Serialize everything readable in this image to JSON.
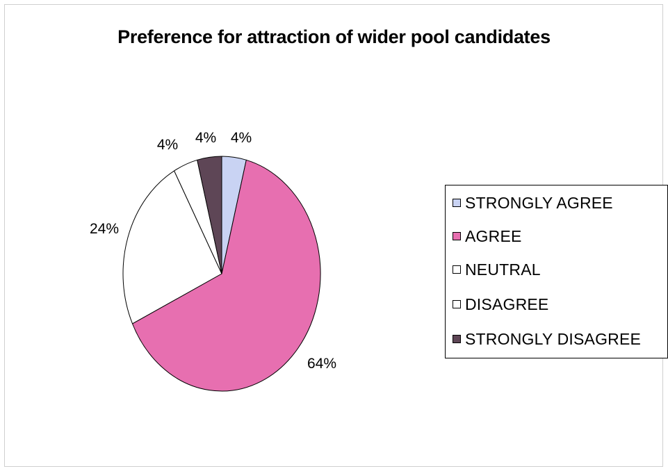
{
  "chart_data": {
    "type": "pie",
    "title": "Preference for attraction of wider pool candidates",
    "categories": [
      "STRONGLY AGREE",
      "AGREE",
      "NEUTRAL",
      "DISAGREE",
      "STRONGLY DISAGREE"
    ],
    "values": [
      4,
      64,
      24,
      4,
      4
    ],
    "labels": [
      "4%",
      "64%",
      "24%",
      "4%",
      "4%"
    ],
    "colors": [
      "#c9d3f3",
      "#e76fb0",
      "#ffffff",
      "#ffffff",
      "#5e4656"
    ],
    "legend_position": "right"
  }
}
